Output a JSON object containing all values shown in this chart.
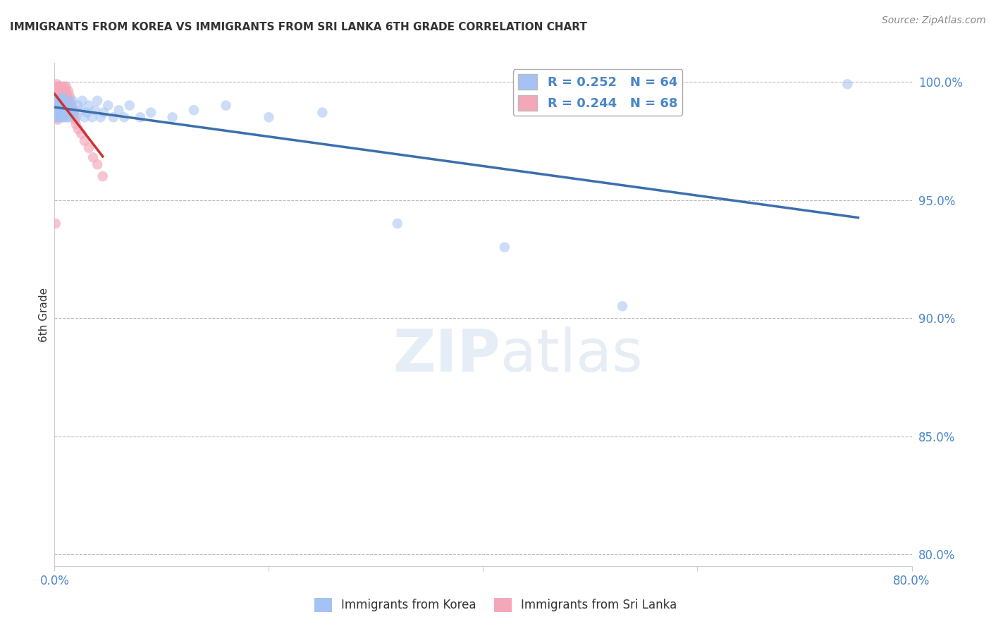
{
  "title": "IMMIGRANTS FROM KOREA VS IMMIGRANTS FROM SRI LANKA 6TH GRADE CORRELATION CHART",
  "source": "Source: ZipAtlas.com",
  "ylabel": "6th Grade",
  "xlim": [
    0.0,
    0.8
  ],
  "ylim": [
    0.795,
    1.008
  ],
  "xticks": [
    0.0,
    0.2,
    0.4,
    0.6,
    0.8
  ],
  "xticklabels": [
    "0.0%",
    "",
    "",
    "",
    "80.0%"
  ],
  "yticks": [
    0.8,
    0.85,
    0.9,
    0.95,
    1.0
  ],
  "yticklabels_right": [
    "80.0%",
    "85.0%",
    "90.0%",
    "95.0%",
    "100.0%"
  ],
  "korea_color": "#a4c2f4",
  "srilanka_color": "#f4a7b9",
  "korea_trend_color": "#3c6fad",
  "srilanka_trend_color": "#cc3333",
  "legend_korea_label": "R = 0.252   N = 64",
  "legend_srilanka_label": "R = 0.244   N = 68",
  "legend_korea_label2": "Immigrants from Korea",
  "legend_srilanka_label2": "Immigrants from Sri Lanka",
  "watermark_zip": "ZIP",
  "watermark_atlas": "atlas",
  "background_color": "#ffffff",
  "grid_color": "#bbbbbb",
  "tick_color": "#4a86c8",
  "title_color": "#333333",
  "axis_color": "#cccccc",
  "korea_x": [
    0.001,
    0.001,
    0.002,
    0.002,
    0.003,
    0.003,
    0.003,
    0.004,
    0.004,
    0.004,
    0.005,
    0.005,
    0.005,
    0.006,
    0.006,
    0.006,
    0.007,
    0.007,
    0.007,
    0.008,
    0.008,
    0.008,
    0.009,
    0.009,
    0.01,
    0.01,
    0.011,
    0.011,
    0.012,
    0.012,
    0.013,
    0.014,
    0.015,
    0.016,
    0.017,
    0.018,
    0.02,
    0.022,
    0.024,
    0.026,
    0.028,
    0.03,
    0.032,
    0.035,
    0.038,
    0.04,
    0.043,
    0.046,
    0.05,
    0.055,
    0.06,
    0.065,
    0.07,
    0.08,
    0.09,
    0.11,
    0.13,
    0.16,
    0.2,
    0.25,
    0.32,
    0.42,
    0.53,
    0.74
  ],
  "korea_y": [
    0.988,
    0.992,
    0.985,
    0.99,
    0.988,
    0.992,
    0.985,
    0.99,
    0.987,
    0.993,
    0.988,
    0.992,
    0.985,
    0.99,
    0.987,
    0.993,
    0.985,
    0.99,
    0.987,
    0.988,
    0.992,
    0.985,
    0.987,
    0.993,
    0.985,
    0.99,
    0.988,
    0.992,
    0.985,
    0.99,
    0.987,
    0.985,
    0.99,
    0.988,
    0.992,
    0.987,
    0.985,
    0.99,
    0.988,
    0.992,
    0.985,
    0.987,
    0.99,
    0.985,
    0.988,
    0.992,
    0.985,
    0.987,
    0.99,
    0.985,
    0.988,
    0.985,
    0.99,
    0.985,
    0.987,
    0.985,
    0.988,
    0.99,
    0.985,
    0.987,
    0.94,
    0.93,
    0.905,
    0.999
  ],
  "srilanka_x": [
    0.001,
    0.001,
    0.001,
    0.001,
    0.001,
    0.001,
    0.001,
    0.002,
    0.002,
    0.002,
    0.002,
    0.002,
    0.002,
    0.002,
    0.002,
    0.003,
    0.003,
    0.003,
    0.003,
    0.003,
    0.003,
    0.003,
    0.003,
    0.004,
    0.004,
    0.004,
    0.004,
    0.004,
    0.005,
    0.005,
    0.005,
    0.005,
    0.006,
    0.006,
    0.006,
    0.006,
    0.007,
    0.007,
    0.007,
    0.007,
    0.008,
    0.008,
    0.008,
    0.009,
    0.009,
    0.01,
    0.01,
    0.01,
    0.011,
    0.011,
    0.012,
    0.012,
    0.013,
    0.014,
    0.015,
    0.016,
    0.017,
    0.018,
    0.019,
    0.02,
    0.022,
    0.025,
    0.028,
    0.032,
    0.036,
    0.04,
    0.045,
    0.001
  ],
  "srilanka_y": [
    0.998,
    0.996,
    0.994,
    0.992,
    0.99,
    0.988,
    0.986,
    0.999,
    0.997,
    0.995,
    0.993,
    0.991,
    0.989,
    0.987,
    0.985,
    0.998,
    0.996,
    0.994,
    0.992,
    0.99,
    0.988,
    0.986,
    0.984,
    0.997,
    0.995,
    0.993,
    0.991,
    0.989,
    0.998,
    0.996,
    0.994,
    0.992,
    0.998,
    0.996,
    0.994,
    0.992,
    0.997,
    0.995,
    0.993,
    0.991,
    0.996,
    0.994,
    0.992,
    0.998,
    0.996,
    0.994,
    0.992,
    0.99,
    0.998,
    0.996,
    0.994,
    0.992,
    0.996,
    0.994,
    0.992,
    0.99,
    0.988,
    0.986,
    0.984,
    0.982,
    0.98,
    0.978,
    0.975,
    0.972,
    0.968,
    0.965,
    0.96,
    0.94
  ]
}
